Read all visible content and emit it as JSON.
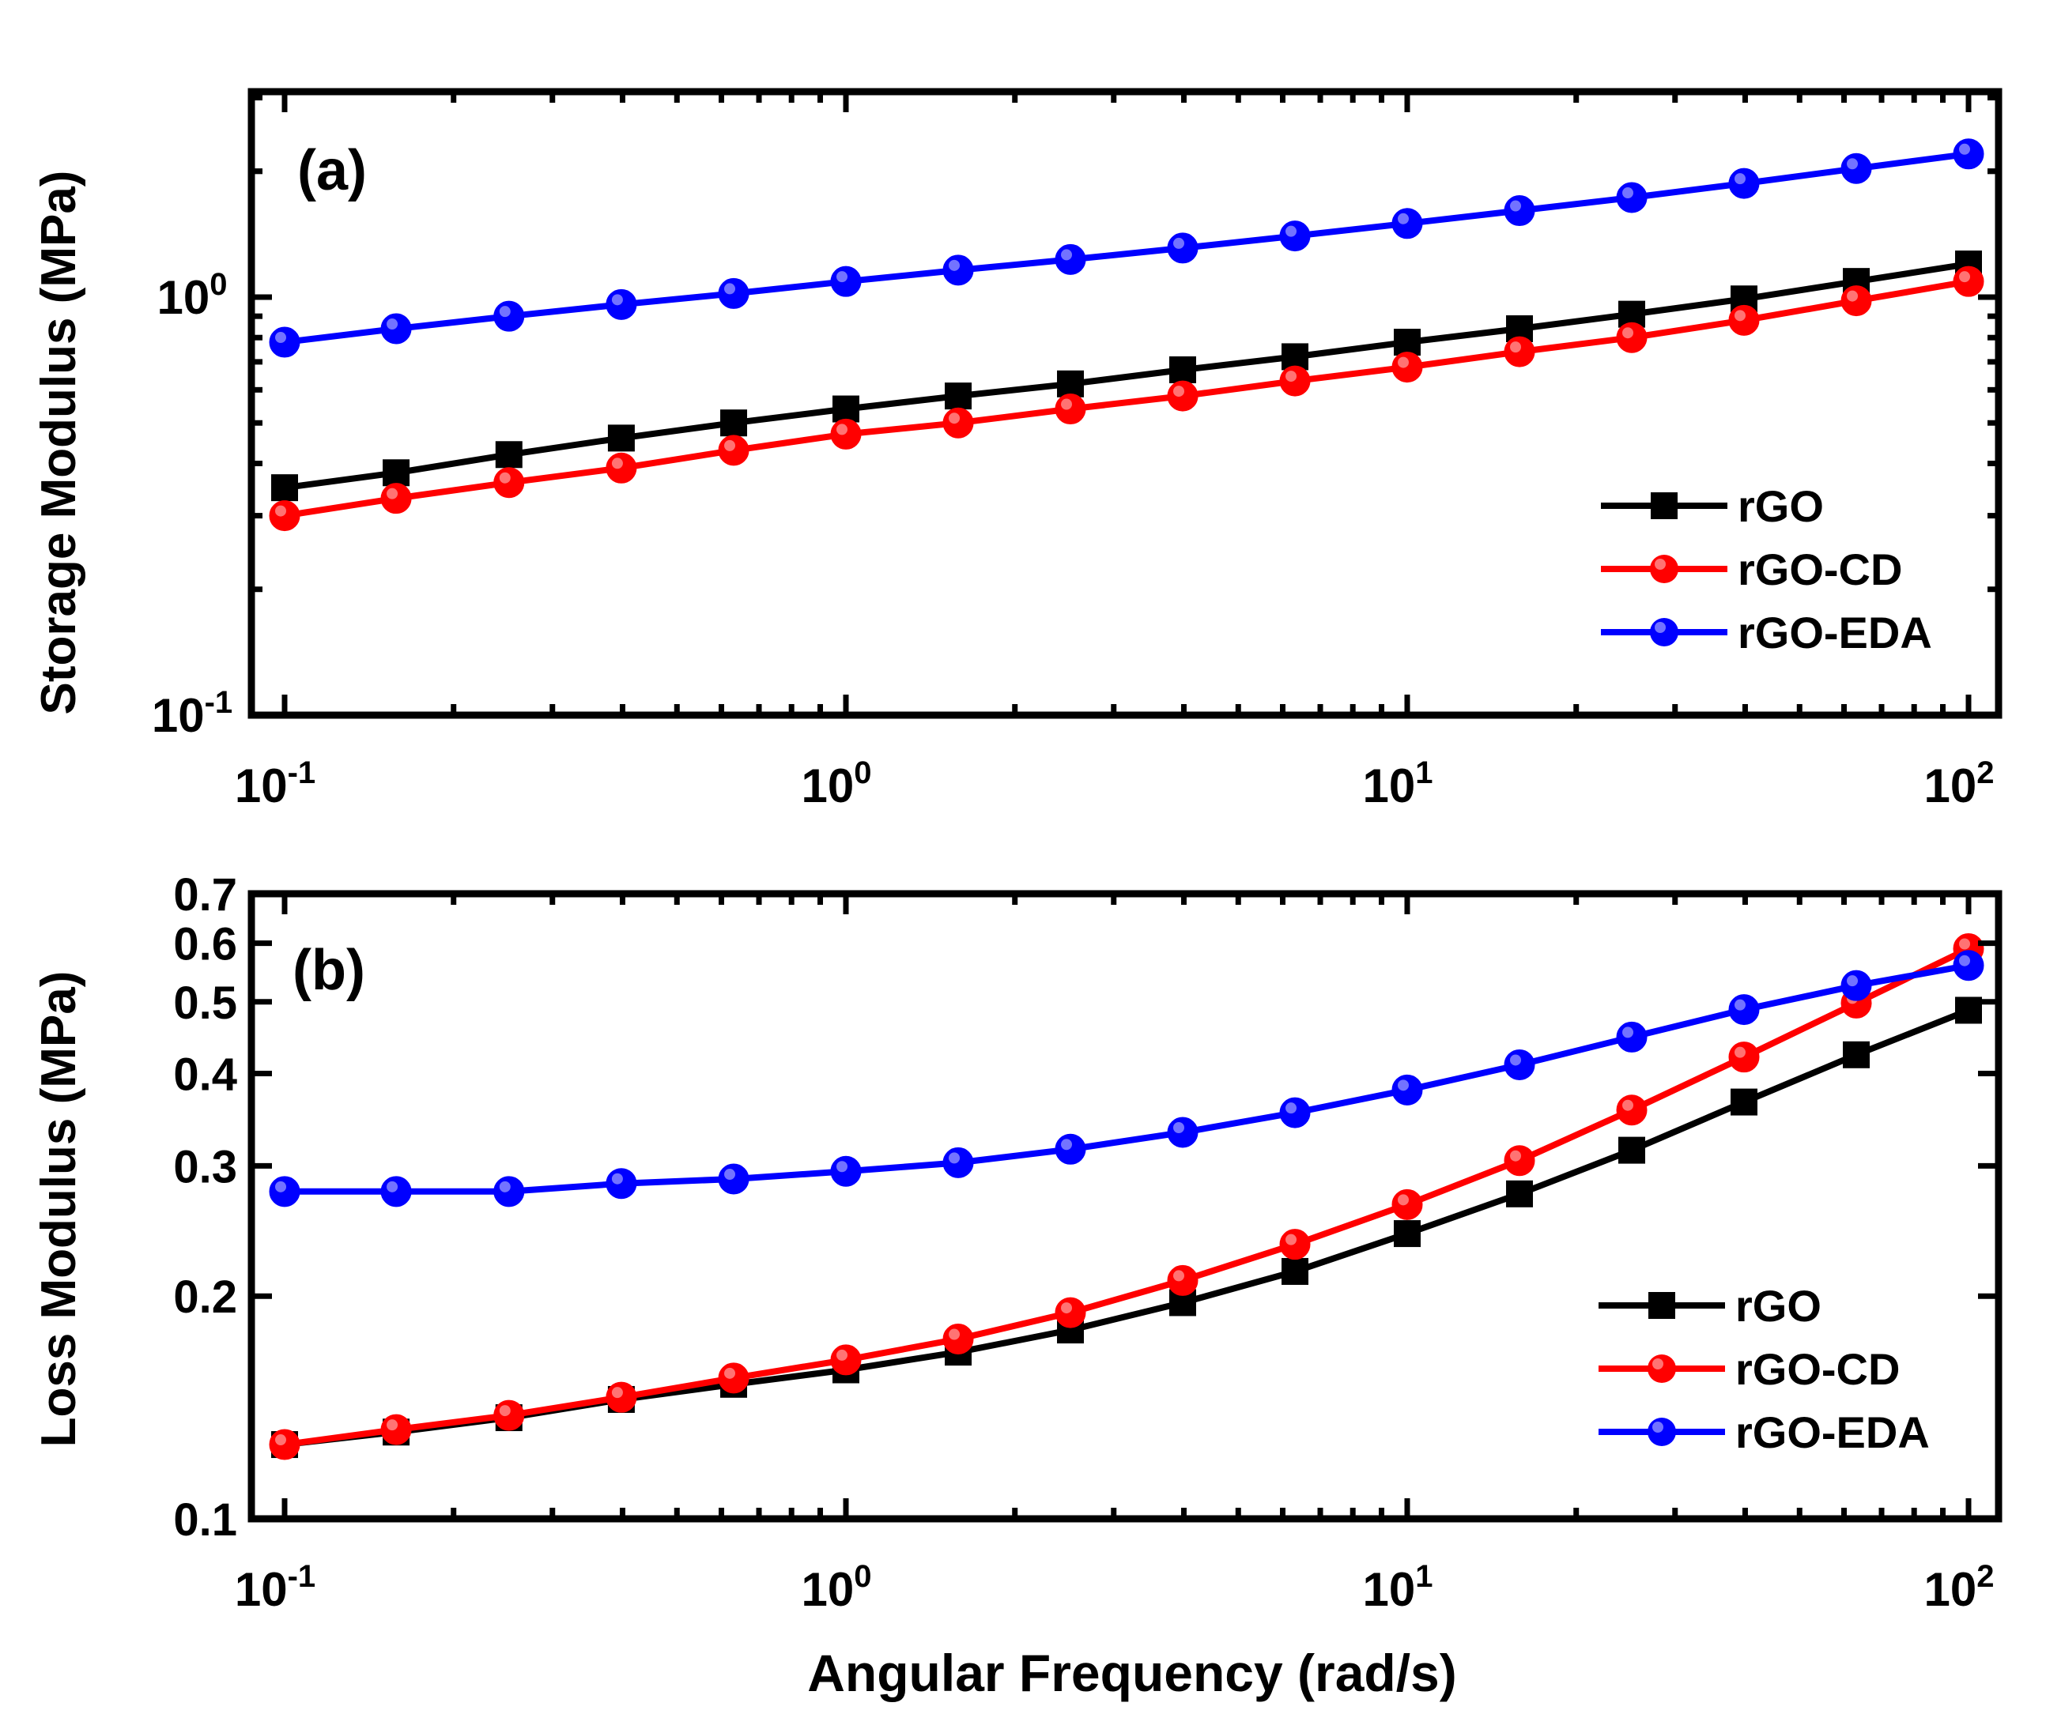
{
  "figure": {
    "xlabel": "Angular Frequency (rad/s)"
  },
  "chart_data": [
    {
      "type": "line",
      "panel_label": "(a)",
      "title": "",
      "xlabel": "",
      "ylabel": "Storage Modulus (MPa)",
      "xscale": "log",
      "yscale": "log",
      "xlim": [
        0.1,
        100
      ],
      "ylim": [
        0.1,
        3.1
      ],
      "x": [
        0.1,
        0.158,
        0.251,
        0.398,
        0.631,
        1.0,
        1.585,
        2.512,
        3.981,
        6.31,
        10.0,
        15.85,
        25.12,
        39.81,
        63.1,
        100.0
      ],
      "xticks": [
        {
          "value": 0.1,
          "base": "10",
          "exp": "-1"
        },
        {
          "value": 1,
          "base": "10",
          "exp": "0"
        },
        {
          "value": 10,
          "base": "10",
          "exp": "1"
        },
        {
          "value": 100,
          "base": "10",
          "exp": "2"
        }
      ],
      "yticks": [
        {
          "value": 0.1,
          "base": "10",
          "exp": "-1"
        },
        {
          "value": 1,
          "base": "10",
          "exp": "0"
        }
      ],
      "legend_position": "bottom-right",
      "series": [
        {
          "name": "rGO",
          "color": "#000000",
          "marker": "square",
          "values": [
            0.35,
            0.38,
            0.42,
            0.46,
            0.5,
            0.54,
            0.58,
            0.62,
            0.67,
            0.72,
            0.78,
            0.84,
            0.91,
            0.99,
            1.09,
            1.2
          ]
        },
        {
          "name": "rGO-CD",
          "color": "#ff0000",
          "marker": "circle",
          "values": [
            0.3,
            0.33,
            0.36,
            0.39,
            0.43,
            0.47,
            0.5,
            0.54,
            0.58,
            0.63,
            0.68,
            0.74,
            0.8,
            0.88,
            0.98,
            1.09
          ]
        },
        {
          "name": "rGO-EDA",
          "color": "#0000ff",
          "marker": "circle",
          "values": [
            0.78,
            0.84,
            0.9,
            0.96,
            1.02,
            1.09,
            1.16,
            1.23,
            1.31,
            1.4,
            1.5,
            1.61,
            1.73,
            1.87,
            2.03,
            2.2
          ]
        }
      ]
    },
    {
      "type": "line",
      "panel_label": "(b)",
      "title": "",
      "xlabel": "",
      "ylabel": "Loss Modulus (MPa)",
      "xscale": "log",
      "yscale": "log",
      "xlim": [
        0.1,
        100
      ],
      "ylim": [
        0.1,
        0.7
      ],
      "x": [
        0.1,
        0.158,
        0.251,
        0.398,
        0.631,
        1.0,
        1.585,
        2.512,
        3.981,
        6.31,
        10.0,
        15.85,
        25.12,
        39.81,
        63.1,
        100.0
      ],
      "xticks": [
        {
          "value": 0.1,
          "base": "10",
          "exp": "-1"
        },
        {
          "value": 1,
          "base": "10",
          "exp": "0"
        },
        {
          "value": 10,
          "base": "10",
          "exp": "1"
        },
        {
          "value": 100,
          "base": "10",
          "exp": "2"
        }
      ],
      "yticks": [
        {
          "value": 0.1,
          "label": "0.1"
        },
        {
          "value": 0.2,
          "label": "0.2"
        },
        {
          "value": 0.3,
          "label": "0.3"
        },
        {
          "value": 0.4,
          "label": "0.4"
        },
        {
          "value": 0.5,
          "label": "0.5"
        },
        {
          "value": 0.6,
          "label": "0.6"
        },
        {
          "value": 0.7,
          "label": "0.7"
        }
      ],
      "legend_position": "bottom-right",
      "series": [
        {
          "name": "rGO",
          "color": "#000000",
          "marker": "square",
          "values": [
            0.126,
            0.131,
            0.137,
            0.145,
            0.152,
            0.159,
            0.168,
            0.18,
            0.196,
            0.216,
            0.243,
            0.275,
            0.315,
            0.366,
            0.424,
            0.487
          ]
        },
        {
          "name": "rGO-CD",
          "color": "#ff0000",
          "marker": "circle",
          "values": [
            0.126,
            0.132,
            0.138,
            0.146,
            0.155,
            0.164,
            0.175,
            0.19,
            0.21,
            0.235,
            0.266,
            0.305,
            0.357,
            0.421,
            0.498,
            0.59
          ]
        },
        {
          "name": "rGO-EDA",
          "color": "#0000ff",
          "marker": "circle",
          "values": [
            0.277,
            0.277,
            0.277,
            0.284,
            0.288,
            0.295,
            0.303,
            0.316,
            0.333,
            0.354,
            0.38,
            0.411,
            0.448,
            0.488,
            0.526,
            0.56
          ]
        }
      ]
    }
  ]
}
